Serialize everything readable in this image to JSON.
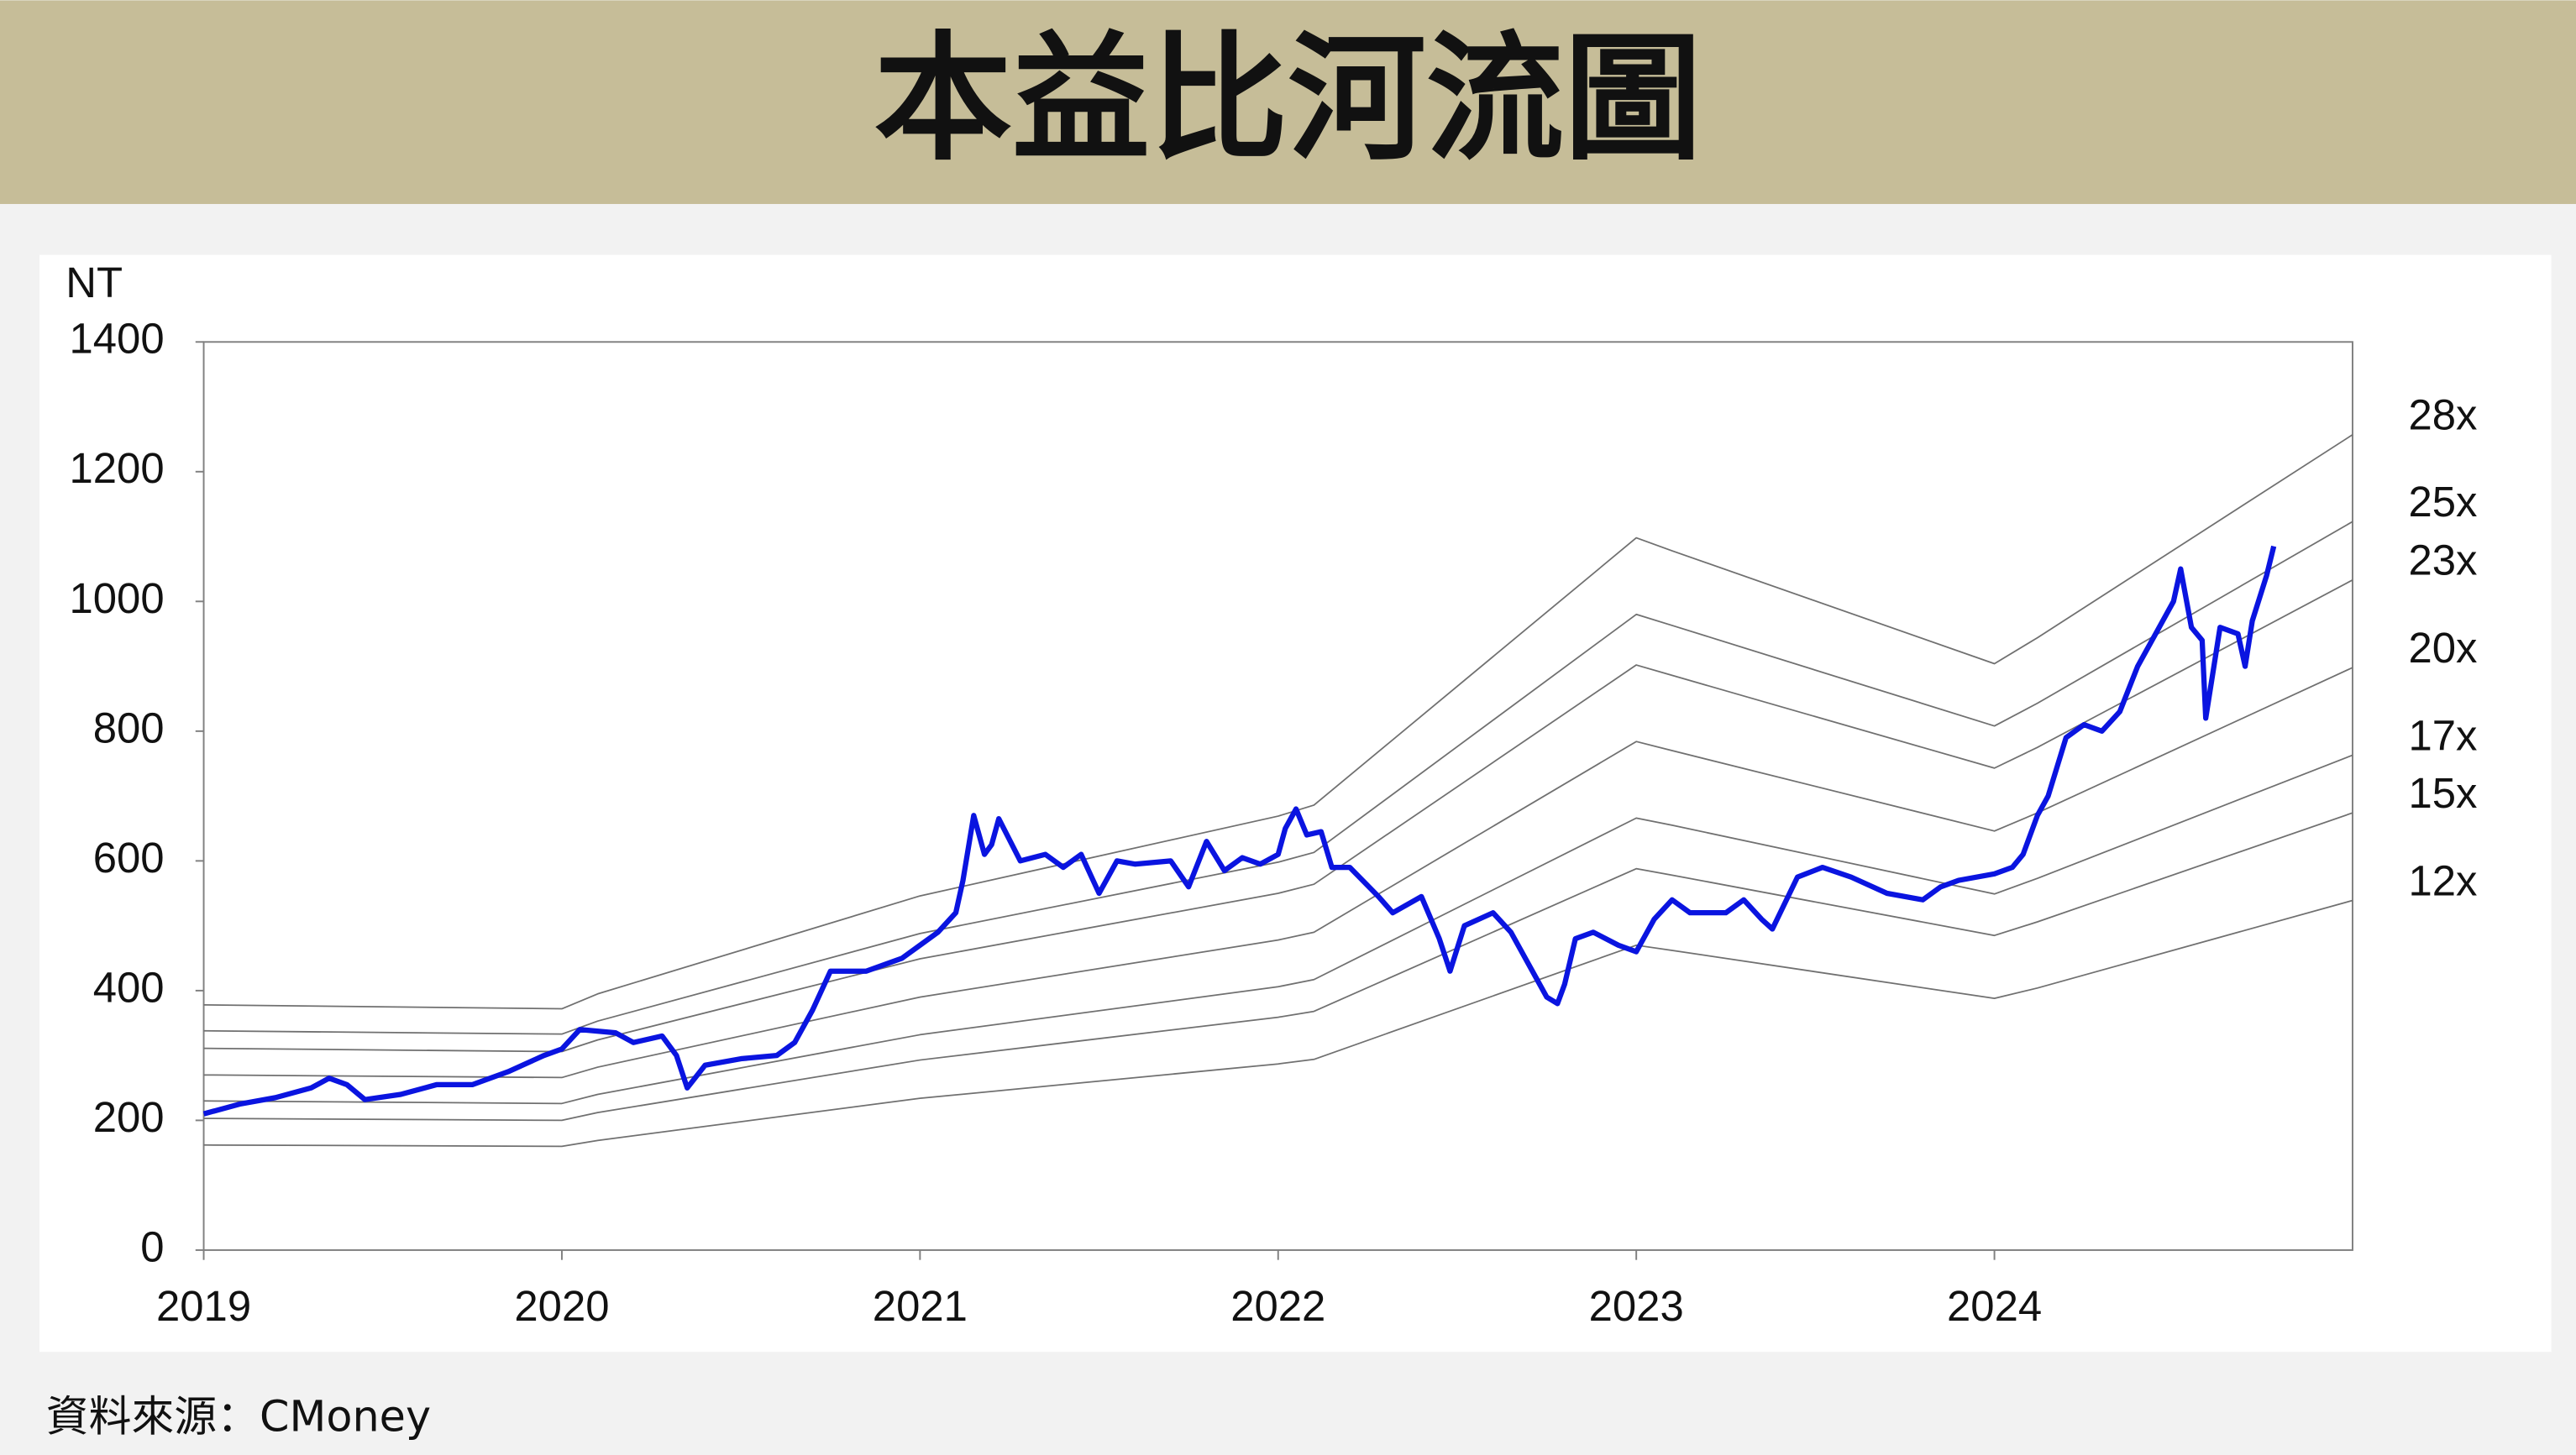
{
  "chart_data": {
    "type": "line",
    "title": "本益比河流圖",
    "y_label": "NT",
    "source": "資料來源：CMoney",
    "xlim": [
      2019,
      2025
    ],
    "xticks": [
      2019,
      2020,
      2021,
      2022,
      2023,
      2024
    ],
    "ylim": [
      0,
      1400
    ],
    "yticks": [
      0,
      200,
      400,
      600,
      800,
      1000,
      1200,
      1400
    ],
    "series": [
      {
        "name": "28x",
        "color": "#707070",
        "x": [
          2019,
          2020,
          2020.1,
          2021,
          2022,
          2022.1,
          2023,
          2023.1,
          2024,
          2024.12,
          2025
        ],
        "values": [
          378,
          372,
          395,
          546,
          669,
          686,
          1098,
          1078,
          904,
          944,
          1257
        ]
      },
      {
        "name": "25x",
        "color": "#707070",
        "x": [
          2019,
          2020,
          2020.1,
          2021,
          2022,
          2022.1,
          2023,
          2023.1,
          2024,
          2024.12,
          2025
        ],
        "values": [
          338,
          333,
          353,
          488,
          598,
          613,
          980,
          963,
          808,
          843,
          1123
        ]
      },
      {
        "name": "23x",
        "color": "#707070",
        "x": [
          2019,
          2020,
          2020.1,
          2021,
          2022,
          2022.1,
          2023,
          2023.1,
          2024,
          2024.12,
          2025
        ],
        "values": [
          311,
          306,
          324,
          449,
          550,
          564,
          902,
          886,
          743,
          775,
          1033
        ]
      },
      {
        "name": "20x",
        "color": "#707070",
        "x": [
          2019,
          2020,
          2020.1,
          2021,
          2022,
          2022.1,
          2023,
          2023.1,
          2024,
          2024.12,
          2025
        ],
        "values": [
          270,
          266,
          282,
          390,
          478,
          490,
          784,
          770,
          646,
          674,
          898
        ]
      },
      {
        "name": "17x",
        "color": "#707070",
        "x": [
          2019,
          2020,
          2020.1,
          2021,
          2022,
          2022.1,
          2023,
          2023.1,
          2024,
          2024.12,
          2025
        ],
        "values": [
          230,
          226,
          240,
          332,
          406,
          417,
          666,
          655,
          549,
          573,
          763
        ]
      },
      {
        "name": "15x",
        "color": "#707070",
        "x": [
          2019,
          2020,
          2020.1,
          2021,
          2022,
          2022.1,
          2023,
          2023.1,
          2024,
          2024.12,
          2025
        ],
        "values": [
          203,
          200,
          212,
          293,
          359,
          368,
          588,
          578,
          485,
          506,
          674
        ]
      },
      {
        "name": "12x",
        "color": "#707070",
        "x": [
          2019,
          2020,
          2020.1,
          2021,
          2022,
          2022.1,
          2023,
          2023.1,
          2024,
          2024.12,
          2025
        ],
        "values": [
          162,
          160,
          169,
          234,
          287,
          294,
          470,
          462,
          388,
          404,
          539
        ]
      },
      {
        "color": "#0a14e0",
        "x": [
          2019.0,
          2019.1,
          2019.2,
          2019.3,
          2019.35,
          2019.4,
          2019.45,
          2019.55,
          2019.65,
          2019.75,
          2019.85,
          2019.95,
          2020.0,
          2020.05,
          2020.15,
          2020.2,
          2020.28,
          2020.32,
          2020.35,
          2020.4,
          2020.5,
          2020.6,
          2020.65,
          2020.7,
          2020.75,
          2020.85,
          2020.95,
          2021.0,
          2021.05,
          2021.1,
          2021.12,
          2021.15,
          2021.18,
          2021.2,
          2021.22,
          2021.28,
          2021.35,
          2021.4,
          2021.45,
          2021.5,
          2021.55,
          2021.6,
          2021.7,
          2021.75,
          2021.8,
          2021.85,
          2021.9,
          2021.95,
          2022.0,
          2022.02,
          2022.05,
          2022.08,
          2022.12,
          2022.15,
          2022.2,
          2022.28,
          2022.32,
          2022.4,
          2022.45,
          2022.48,
          2022.52,
          2022.6,
          2022.65,
          2022.72,
          2022.75,
          2022.78,
          2022.8,
          2022.83,
          2022.88,
          2022.95,
          2023.0,
          2023.05,
          2023.1,
          2023.15,
          2023.25,
          2023.3,
          2023.35,
          2023.38,
          2023.45,
          2023.52,
          2023.6,
          2023.7,
          2023.8,
          2023.85,
          2023.9,
          2023.95,
          2024.0,
          2024.05,
          2024.08,
          2024.12,
          2024.15,
          2024.2,
          2024.25,
          2024.3,
          2024.35,
          2024.4,
          2024.45,
          2024.5,
          2024.52,
          2024.55,
          2024.58,
          2024.59,
          2024.63,
          2024.68,
          2024.7,
          2024.72,
          2024.76,
          2024.78
        ],
        "values": [
          210,
          225,
          235,
          250,
          265,
          255,
          232,
          240,
          255,
          255,
          275,
          300,
          310,
          340,
          335,
          320,
          330,
          300,
          250,
          285,
          295,
          300,
          320,
          370,
          430,
          430,
          450,
          470,
          490,
          520,
          570,
          670,
          610,
          625,
          665,
          600,
          610,
          590,
          610,
          550,
          600,
          595,
          600,
          560,
          630,
          585,
          605,
          595,
          610,
          650,
          680,
          640,
          645,
          590,
          590,
          545,
          520,
          545,
          480,
          430,
          500,
          520,
          490,
          420,
          390,
          380,
          410,
          480,
          490,
          470,
          460,
          510,
          540,
          520,
          520,
          540,
          510,
          495,
          575,
          590,
          575,
          550,
          540,
          560,
          570,
          575,
          580,
          590,
          610,
          670,
          700,
          790,
          810,
          800,
          830,
          900,
          950,
          1000,
          1050,
          960,
          940,
          820,
          960,
          950,
          900,
          970,
          1040,
          1085
        ]
      }
    ]
  }
}
